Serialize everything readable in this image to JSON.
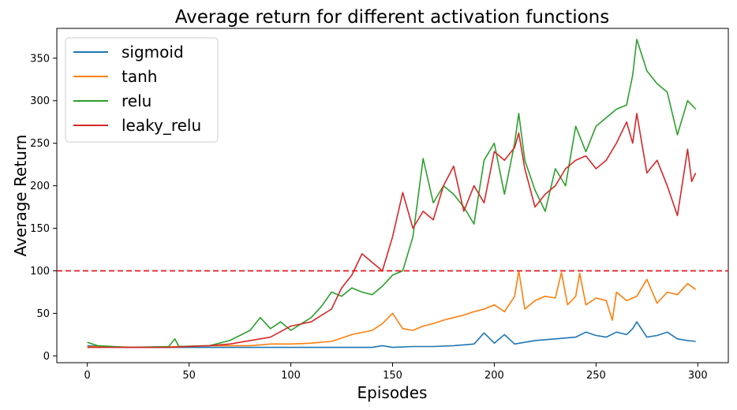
{
  "chart_data": {
    "type": "line",
    "title": "Average return for different activation functions",
    "xlabel": "Episodes",
    "ylabel": "Average Return",
    "xlim": [
      -15,
      315
    ],
    "ylim": [
      -8,
      385
    ],
    "xticks": [
      0,
      50,
      100,
      150,
      200,
      250,
      300
    ],
    "yticks": [
      0,
      50,
      100,
      150,
      200,
      250,
      300,
      350
    ],
    "grid": false,
    "legend_position": "top-left",
    "threshold": {
      "value": 100,
      "color": "#e41a1c",
      "style": "dashed"
    },
    "series": [
      {
        "name": "sigmoid",
        "color": "#1f77b4",
        "points": [
          [
            0,
            12
          ],
          [
            20,
            10
          ],
          [
            40,
            10
          ],
          [
            60,
            10
          ],
          [
            80,
            10
          ],
          [
            100,
            10
          ],
          [
            120,
            10
          ],
          [
            140,
            10
          ],
          [
            145,
            12
          ],
          [
            150,
            10
          ],
          [
            160,
            11
          ],
          [
            170,
            11
          ],
          [
            180,
            12
          ],
          [
            190,
            14
          ],
          [
            195,
            27
          ],
          [
            200,
            15
          ],
          [
            205,
            25
          ],
          [
            210,
            14
          ],
          [
            220,
            18
          ],
          [
            230,
            20
          ],
          [
            240,
            22
          ],
          [
            245,
            28
          ],
          [
            250,
            24
          ],
          [
            255,
            22
          ],
          [
            260,
            28
          ],
          [
            265,
            25
          ],
          [
            268,
            32
          ],
          [
            270,
            40
          ],
          [
            275,
            22
          ],
          [
            280,
            24
          ],
          [
            285,
            28
          ],
          [
            290,
            20
          ],
          [
            295,
            18
          ],
          [
            299,
            17
          ]
        ]
      },
      {
        "name": "tanh",
        "color": "#ff7f0e",
        "points": [
          [
            0,
            11
          ],
          [
            30,
            10
          ],
          [
            60,
            12
          ],
          [
            80,
            12
          ],
          [
            90,
            14
          ],
          [
            100,
            14
          ],
          [
            110,
            15
          ],
          [
            120,
            17
          ],
          [
            130,
            25
          ],
          [
            140,
            30
          ],
          [
            145,
            38
          ],
          [
            150,
            50
          ],
          [
            155,
            32
          ],
          [
            160,
            30
          ],
          [
            165,
            35
          ],
          [
            170,
            38
          ],
          [
            175,
            42
          ],
          [
            180,
            45
          ],
          [
            185,
            48
          ],
          [
            190,
            52
          ],
          [
            195,
            55
          ],
          [
            200,
            60
          ],
          [
            205,
            52
          ],
          [
            210,
            70
          ],
          [
            212,
            100
          ],
          [
            215,
            55
          ],
          [
            220,
            65
          ],
          [
            225,
            70
          ],
          [
            230,
            68
          ],
          [
            233,
            98
          ],
          [
            236,
            60
          ],
          [
            240,
            70
          ],
          [
            242,
            97
          ],
          [
            245,
            60
          ],
          [
            250,
            68
          ],
          [
            255,
            65
          ],
          [
            258,
            42
          ],
          [
            260,
            75
          ],
          [
            265,
            65
          ],
          [
            270,
            70
          ],
          [
            275,
            90
          ],
          [
            280,
            62
          ],
          [
            285,
            75
          ],
          [
            290,
            72
          ],
          [
            295,
            85
          ],
          [
            299,
            78
          ]
        ]
      },
      {
        "name": "relu",
        "color": "#2ca02c",
        "points": [
          [
            0,
            16
          ],
          [
            5,
            12
          ],
          [
            20,
            10
          ],
          [
            40,
            11
          ],
          [
            43,
            20
          ],
          [
            45,
            11
          ],
          [
            60,
            12
          ],
          [
            70,
            18
          ],
          [
            80,
            30
          ],
          [
            85,
            45
          ],
          [
            90,
            32
          ],
          [
            95,
            40
          ],
          [
            100,
            30
          ],
          [
            110,
            45
          ],
          [
            115,
            58
          ],
          [
            120,
            75
          ],
          [
            125,
            70
          ],
          [
            130,
            80
          ],
          [
            135,
            75
          ],
          [
            140,
            72
          ],
          [
            145,
            82
          ],
          [
            150,
            95
          ],
          [
            155,
            100
          ],
          [
            160,
            140
          ],
          [
            165,
            232
          ],
          [
            170,
            180
          ],
          [
            175,
            200
          ],
          [
            180,
            190
          ],
          [
            185,
            175
          ],
          [
            190,
            155
          ],
          [
            195,
            230
          ],
          [
            200,
            250
          ],
          [
            205,
            190
          ],
          [
            210,
            250
          ],
          [
            212,
            285
          ],
          [
            215,
            230
          ],
          [
            220,
            195
          ],
          [
            225,
            170
          ],
          [
            230,
            220
          ],
          [
            235,
            200
          ],
          [
            240,
            270
          ],
          [
            245,
            240
          ],
          [
            250,
            270
          ],
          [
            255,
            280
          ],
          [
            260,
            290
          ],
          [
            265,
            295
          ],
          [
            268,
            330
          ],
          [
            270,
            372
          ],
          [
            275,
            335
          ],
          [
            280,
            320
          ],
          [
            285,
            310
          ],
          [
            290,
            260
          ],
          [
            295,
            300
          ],
          [
            299,
            290
          ]
        ]
      },
      {
        "name": "leaky_relu",
        "color": "#d62728",
        "points": [
          [
            0,
            10
          ],
          [
            20,
            10
          ],
          [
            40,
            10
          ],
          [
            60,
            12
          ],
          [
            70,
            14
          ],
          [
            80,
            18
          ],
          [
            90,
            22
          ],
          [
            100,
            35
          ],
          [
            110,
            40
          ],
          [
            120,
            55
          ],
          [
            125,
            80
          ],
          [
            130,
            95
          ],
          [
            135,
            120
          ],
          [
            140,
            110
          ],
          [
            145,
            100
          ],
          [
            150,
            140
          ],
          [
            155,
            192
          ],
          [
            160,
            150
          ],
          [
            165,
            170
          ],
          [
            170,
            160
          ],
          [
            175,
            200
          ],
          [
            180,
            223
          ],
          [
            185,
            170
          ],
          [
            190,
            200
          ],
          [
            195,
            180
          ],
          [
            200,
            240
          ],
          [
            205,
            230
          ],
          [
            210,
            245
          ],
          [
            212,
            262
          ],
          [
            215,
            220
          ],
          [
            220,
            175
          ],
          [
            225,
            190
          ],
          [
            230,
            200
          ],
          [
            235,
            220
          ],
          [
            240,
            230
          ],
          [
            245,
            235
          ],
          [
            250,
            220
          ],
          [
            255,
            230
          ],
          [
            260,
            250
          ],
          [
            265,
            275
          ],
          [
            268,
            250
          ],
          [
            270,
            285
          ],
          [
            275,
            215
          ],
          [
            280,
            230
          ],
          [
            285,
            200
          ],
          [
            290,
            165
          ],
          [
            295,
            243
          ],
          [
            297,
            205
          ],
          [
            299,
            215
          ]
        ]
      }
    ]
  }
}
